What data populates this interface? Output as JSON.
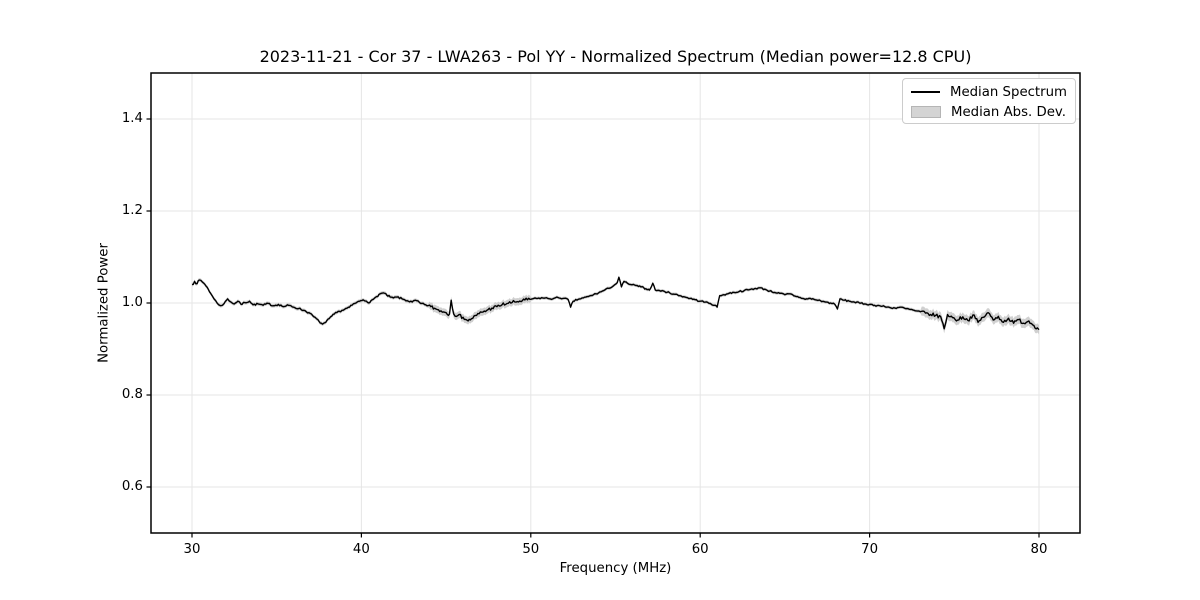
{
  "chart_data": {
    "type": "line",
    "title": "2023-11-21 - Cor 37 - LWA263 - Pol YY - Normalized Spectrum (Median power=12.8 CPU)",
    "xlabel": "Frequency (MHz)",
    "ylabel": "Normalized Power",
    "xlim": [
      27.58,
      82.42
    ],
    "ylim": [
      0.5,
      1.5
    ],
    "xticks": [
      30,
      40,
      50,
      60,
      70,
      80
    ],
    "xtick_labels": [
      "30",
      "40",
      "50",
      "60",
      "70",
      "80"
    ],
    "yticks": [
      0.6,
      0.8,
      1.0,
      1.2,
      1.4
    ],
    "ytick_labels": [
      "0.6",
      "0.8",
      "1.0",
      "1.2",
      "1.4"
    ],
    "grid": true,
    "legend": {
      "position": "upper right",
      "entries": [
        {
          "label": "Median Spectrum",
          "type": "line",
          "color": "#000000"
        },
        {
          "label": "Median Abs. Dev.",
          "type": "patch",
          "color": "#d4d4d4"
        }
      ]
    },
    "colors": {
      "line": "#000000",
      "band": "#c8c8c8",
      "grid": "#e5e5e5",
      "frame": "#000000",
      "background": "#ffffff"
    },
    "noise_amp_regions": [
      [
        30,
        31,
        0.003
      ],
      [
        31,
        44,
        0.002
      ],
      [
        44,
        50,
        0.004
      ],
      [
        50,
        73,
        0.0017
      ],
      [
        73,
        80,
        0.004
      ]
    ],
    "band_halfwidth_regions": [
      [
        30,
        44,
        0.004
      ],
      [
        44,
        50,
        0.008
      ],
      [
        50,
        73,
        0.0035
      ],
      [
        73,
        80,
        0.01
      ]
    ],
    "series": [
      {
        "name": "Median Spectrum",
        "color": "#000000",
        "points": [
          [
            30.0,
            1.04
          ],
          [
            30.15,
            1.047
          ],
          [
            30.3,
            1.042
          ],
          [
            30.45,
            1.05
          ],
          [
            30.6,
            1.046
          ],
          [
            30.75,
            1.041
          ],
          [
            30.9,
            1.034
          ],
          [
            31.1,
            1.021
          ],
          [
            31.3,
            1.009
          ],
          [
            31.5,
            0.999
          ],
          [
            31.7,
            0.994
          ],
          [
            31.9,
            0.999
          ],
          [
            32.1,
            1.009
          ],
          [
            32.3,
            1.002
          ],
          [
            32.5,
            0.998
          ],
          [
            32.7,
            1.004
          ],
          [
            32.9,
            0.997
          ],
          [
            33.1,
            1.001
          ],
          [
            33.4,
            1.004
          ],
          [
            33.6,
            0.996
          ],
          [
            33.9,
            0.998
          ],
          [
            34.2,
            0.995
          ],
          [
            34.5,
            0.999
          ],
          [
            34.8,
            0.994
          ],
          [
            35.1,
            0.997
          ],
          [
            35.4,
            0.992
          ],
          [
            35.7,
            0.995
          ],
          [
            36.0,
            0.991
          ],
          [
            36.3,
            0.988
          ],
          [
            36.6,
            0.984
          ],
          [
            36.9,
            0.979
          ],
          [
            37.2,
            0.97
          ],
          [
            37.5,
            0.96
          ],
          [
            37.7,
            0.954
          ],
          [
            37.9,
            0.958
          ],
          [
            38.1,
            0.966
          ],
          [
            38.4,
            0.976
          ],
          [
            38.7,
            0.982
          ],
          [
            39.0,
            0.986
          ],
          [
            39.3,
            0.991
          ],
          [
            39.6,
            0.999
          ],
          [
            39.9,
            1.004
          ],
          [
            40.1,
            1.007
          ],
          [
            40.3,
            1.004
          ],
          [
            40.5,
            1.001
          ],
          [
            40.7,
            1.008
          ],
          [
            40.9,
            1.014
          ],
          [
            41.1,
            1.02
          ],
          [
            41.3,
            1.022
          ],
          [
            41.5,
            1.017
          ],
          [
            41.7,
            1.013
          ],
          [
            41.9,
            1.011
          ],
          [
            42.1,
            1.013
          ],
          [
            42.4,
            1.009
          ],
          [
            42.7,
            1.005
          ],
          [
            43.0,
            1.002
          ],
          [
            43.2,
            1.006
          ],
          [
            43.5,
            0.999
          ],
          [
            43.8,
            0.996
          ],
          [
            44.1,
            0.992
          ],
          [
            44.4,
            0.987
          ],
          [
            44.7,
            0.983
          ],
          [
            45.0,
            0.979
          ],
          [
            45.2,
            0.976
          ],
          [
            45.3,
            1.006
          ],
          [
            45.45,
            0.976
          ],
          [
            45.7,
            0.973
          ],
          [
            46.0,
            0.969
          ],
          [
            46.3,
            0.961
          ],
          [
            46.5,
            0.966
          ],
          [
            46.8,
            0.973
          ],
          [
            47.1,
            0.98
          ],
          [
            47.4,
            0.984
          ],
          [
            47.7,
            0.989
          ],
          [
            48.0,
            0.992
          ],
          [
            48.3,
            0.996
          ],
          [
            48.6,
            0.999
          ],
          [
            48.9,
            1.001
          ],
          [
            49.2,
            1.003
          ],
          [
            49.5,
            1.005
          ],
          [
            49.8,
            1.007
          ],
          [
            50.1,
            1.009
          ],
          [
            50.4,
            1.01
          ],
          [
            50.7,
            1.011
          ],
          [
            51.0,
            1.01
          ],
          [
            51.3,
            1.009
          ],
          [
            51.6,
            1.012
          ],
          [
            51.9,
            1.01
          ],
          [
            52.2,
            1.008
          ],
          [
            52.35,
            0.991
          ],
          [
            52.5,
            1.004
          ],
          [
            52.8,
            1.008
          ],
          [
            53.1,
            1.011
          ],
          [
            53.4,
            1.014
          ],
          [
            53.7,
            1.018
          ],
          [
            54.0,
            1.022
          ],
          [
            54.3,
            1.027
          ],
          [
            54.6,
            1.032
          ],
          [
            54.9,
            1.038
          ],
          [
            55.1,
            1.044
          ],
          [
            55.2,
            1.056
          ],
          [
            55.35,
            1.035
          ],
          [
            55.5,
            1.047
          ],
          [
            55.7,
            1.043
          ],
          [
            55.9,
            1.04
          ],
          [
            56.2,
            1.038
          ],
          [
            56.5,
            1.035
          ],
          [
            56.8,
            1.031
          ],
          [
            57.0,
            1.028
          ],
          [
            57.2,
            1.043
          ],
          [
            57.35,
            1.028
          ],
          [
            57.6,
            1.027
          ],
          [
            57.9,
            1.025
          ],
          [
            58.2,
            1.022
          ],
          [
            58.5,
            1.019
          ],
          [
            58.8,
            1.016
          ],
          [
            59.1,
            1.013
          ],
          [
            59.4,
            1.01
          ],
          [
            59.7,
            1.007
          ],
          [
            60.0,
            1.004
          ],
          [
            60.3,
            1.002
          ],
          [
            60.6,
            0.999
          ],
          [
            60.85,
            0.995
          ],
          [
            61.0,
            0.991
          ],
          [
            61.15,
            1.016
          ],
          [
            61.4,
            1.018
          ],
          [
            61.7,
            1.021
          ],
          [
            62.0,
            1.023
          ],
          [
            62.3,
            1.025
          ],
          [
            62.6,
            1.027
          ],
          [
            62.9,
            1.029
          ],
          [
            63.2,
            1.031
          ],
          [
            63.5,
            1.033
          ],
          [
            63.8,
            1.03
          ],
          [
            64.1,
            1.026
          ],
          [
            64.4,
            1.023
          ],
          [
            64.7,
            1.021
          ],
          [
            65.0,
            1.018
          ],
          [
            65.3,
            1.02
          ],
          [
            65.6,
            1.015
          ],
          [
            65.9,
            1.012
          ],
          [
            66.2,
            1.008
          ],
          [
            66.5,
            1.01
          ],
          [
            66.8,
            1.007
          ],
          [
            67.1,
            1.005
          ],
          [
            67.4,
            1.002
          ],
          [
            67.7,
            1.0
          ],
          [
            67.95,
            0.997
          ],
          [
            68.1,
            0.987
          ],
          [
            68.25,
            1.009
          ],
          [
            68.5,
            1.006
          ],
          [
            68.8,
            1.004
          ],
          [
            69.1,
            1.002
          ],
          [
            69.4,
            1.0
          ],
          [
            69.7,
            0.998
          ],
          [
            70.0,
            0.997
          ],
          [
            70.3,
            0.995
          ],
          [
            70.6,
            0.994
          ],
          [
            70.9,
            0.992
          ],
          [
            71.2,
            0.99
          ],
          [
            71.5,
            0.989
          ],
          [
            71.8,
            0.991
          ],
          [
            72.1,
            0.988
          ],
          [
            72.4,
            0.986
          ],
          [
            72.7,
            0.983
          ],
          [
            73.0,
            0.981
          ],
          [
            73.3,
            0.978
          ],
          [
            73.6,
            0.975
          ],
          [
            73.9,
            0.973
          ],
          [
            74.2,
            0.97
          ],
          [
            74.4,
            0.944
          ],
          [
            74.6,
            0.975
          ],
          [
            74.9,
            0.968
          ],
          [
            75.2,
            0.963
          ],
          [
            75.5,
            0.97
          ],
          [
            75.8,
            0.962
          ],
          [
            76.1,
            0.974
          ],
          [
            76.4,
            0.958
          ],
          [
            76.7,
            0.969
          ],
          [
            77.0,
            0.979
          ],
          [
            77.3,
            0.963
          ],
          [
            77.6,
            0.971
          ],
          [
            77.9,
            0.958
          ],
          [
            78.2,
            0.967
          ],
          [
            78.5,
            0.956
          ],
          [
            78.8,
            0.964
          ],
          [
            79.1,
            0.956
          ],
          [
            79.4,
            0.961
          ],
          [
            79.7,
            0.951
          ],
          [
            79.9,
            0.946
          ],
          [
            80.0,
            0.942
          ]
        ]
      },
      {
        "name": "Median Abs. Dev.",
        "type": "band",
        "color": "#c8c8c8"
      }
    ]
  }
}
